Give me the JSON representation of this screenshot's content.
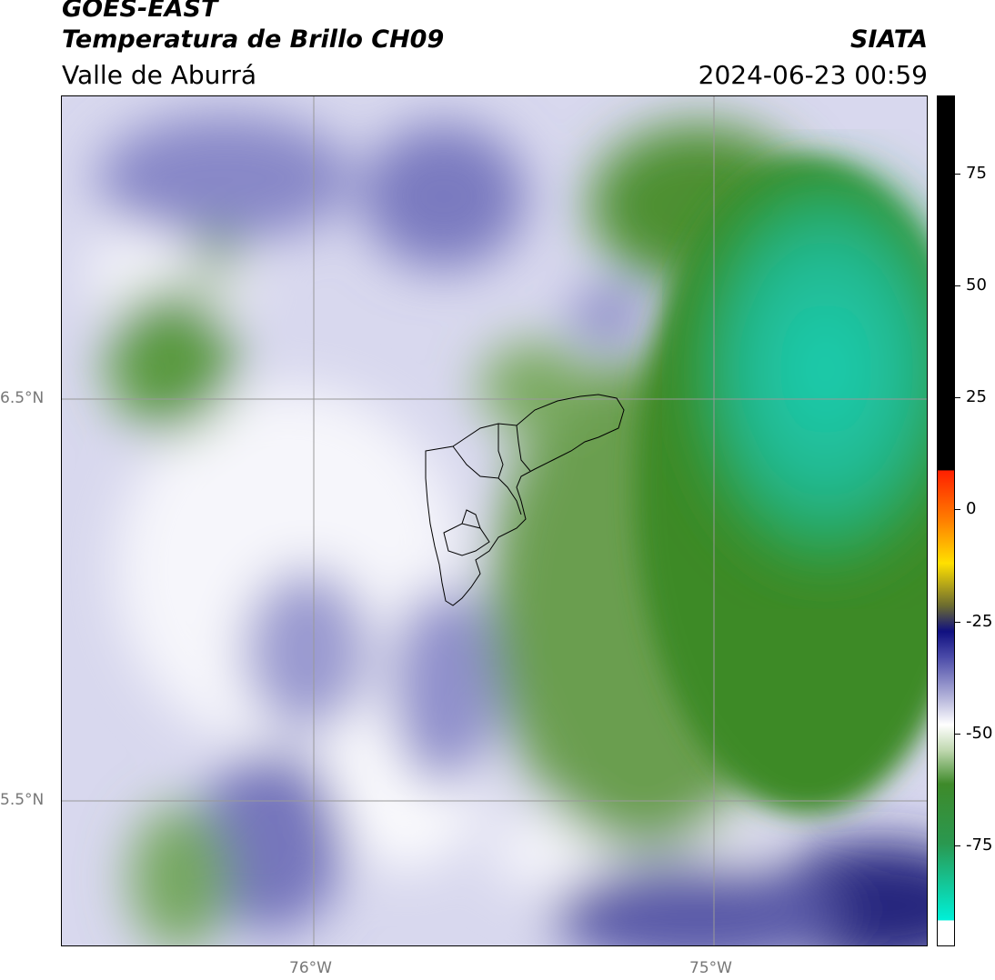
{
  "header": {
    "satellite": "GOES-EAST",
    "product": "Temperatura de Brillo CH09",
    "region": "Valle de Aburrá",
    "org": "SIATA",
    "datetime": "2024-06-23 00:59"
  },
  "map": {
    "lat_labels": [
      "6.5°N",
      "5.5°N"
    ],
    "lon_labels": [
      "76°W",
      "75°W"
    ]
  },
  "colorbar": {
    "ticks": [
      "75",
      "50",
      "25",
      "0",
      "-25",
      "-50",
      "-75"
    ],
    "colors": {
      "cyan": "#1fd4b0",
      "green": "#4a8c2a",
      "white": "#ffffff",
      "lavender": "#aaaad8",
      "navy": "#1a1a78",
      "black": "#000000"
    }
  }
}
